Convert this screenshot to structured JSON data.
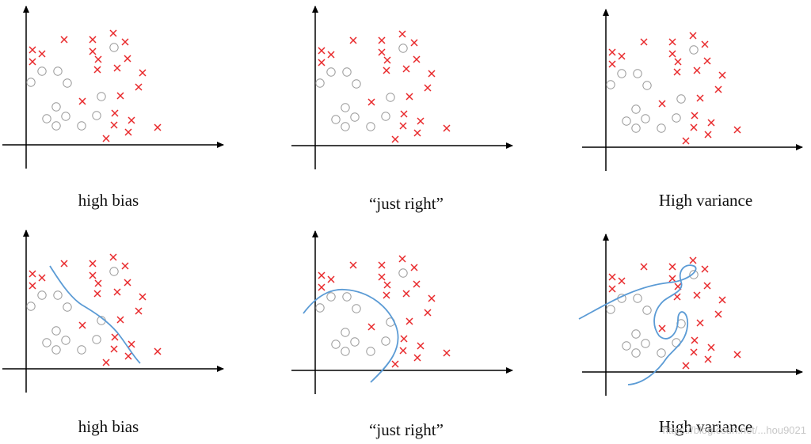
{
  "colors": {
    "axis": "#000000",
    "cross": "#e8282b",
    "circle": "#9a9a9a",
    "boundary": "#5b9bd5"
  },
  "marker_legend": {
    "cross": "positive-example",
    "circle": "negative-example"
  },
  "panels": [
    {
      "id": "r1c1",
      "caption": "high bias",
      "fit": "none"
    },
    {
      "id": "r1c2",
      "caption": "“just right”",
      "fit": "none"
    },
    {
      "id": "r1c3",
      "caption": "High variance",
      "fit": "none"
    },
    {
      "id": "r2c1",
      "caption": "high bias",
      "fit": "linear"
    },
    {
      "id": "r2c2",
      "caption": "“just right”",
      "fit": "smooth-curve"
    },
    {
      "id": "r2c3",
      "caption": "High variance",
      "fit": "overfit-curve"
    }
  ],
  "watermark": "https://blog.csdn.net/...hou9021"
}
